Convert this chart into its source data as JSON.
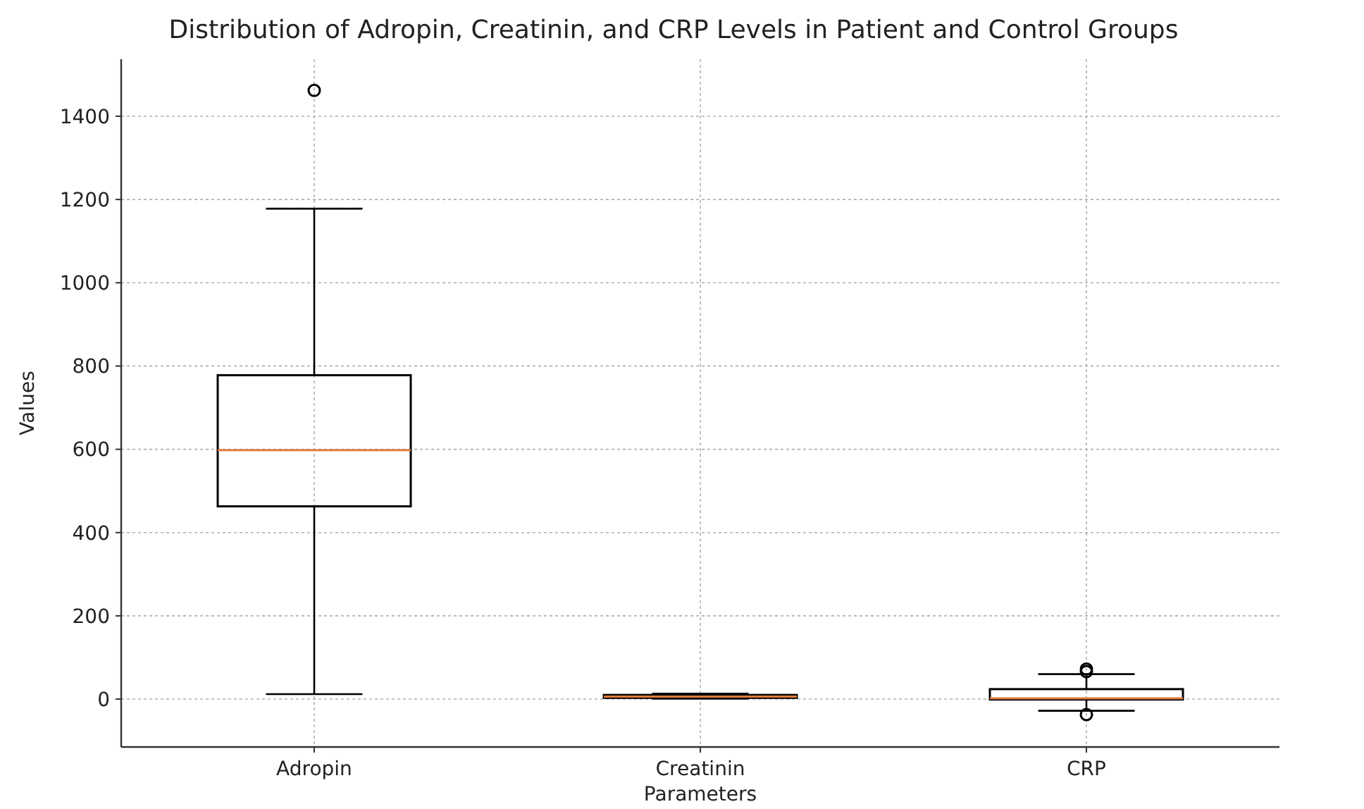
{
  "chart_data": {
    "type": "box",
    "title": "Distribution of Adropin, Creatinin, and CRP Levels in Patient and Control Groups",
    "xlabel": "Parameters",
    "ylabel": "Values",
    "categories": [
      "Adropin",
      "Creatinin",
      "CRP"
    ],
    "boxes": [
      {
        "low": 12,
        "q1": 463,
        "median": 598,
        "q3": 778,
        "high": 1178,
        "outliers": [
          1462
        ]
      },
      {
        "low": 1,
        "q1": 3,
        "median": 6,
        "q3": 10,
        "high": 13
      },
      {
        "low": -28,
        "q1": -1,
        "median": 2,
        "q3": 24,
        "high": 60,
        "outliers": [
          -37,
          66,
          72
        ]
      }
    ],
    "color": "#000000",
    "ylim": [
      -115,
      1537
    ],
    "yticks": [
      0,
      200,
      400,
      600,
      800,
      1000,
      1200,
      1400
    ],
    "grid": true
  }
}
